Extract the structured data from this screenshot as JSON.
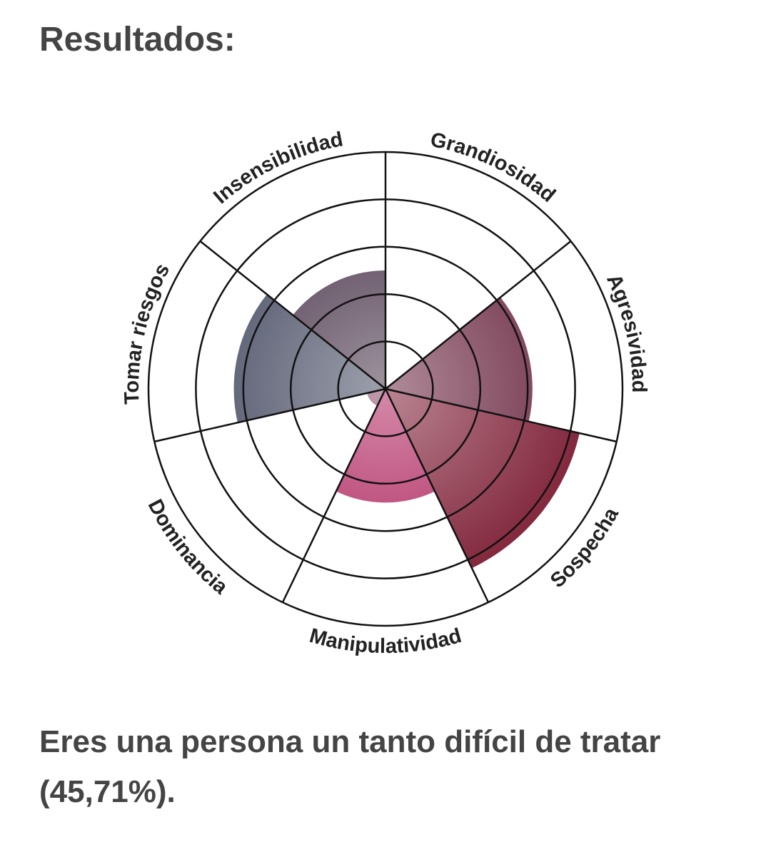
{
  "title": "Resultados:",
  "chart_data": {
    "type": "polar-area",
    "categories": [
      "Grandiosidad",
      "Agresividad",
      "Sospecha",
      "Manipulatividad",
      "Dominancia",
      "Tomar riesgos",
      "Insensibilidad"
    ],
    "values": [
      0,
      3.1,
      4.2,
      2.4,
      0.4,
      3.2,
      2.5
    ],
    "colors": [
      "#7a6a7a",
      "#6e2c45",
      "#7f2238",
      "#b02a62",
      "#8a4a6a",
      "#4d5268",
      "#4f3b50"
    ],
    "rlim": [
      0,
      5
    ],
    "rticks": [
      1,
      2,
      3,
      4,
      5
    ],
    "grid": true
  },
  "result": "Eres una persona un tanto difícil de tratar (45,71%)."
}
